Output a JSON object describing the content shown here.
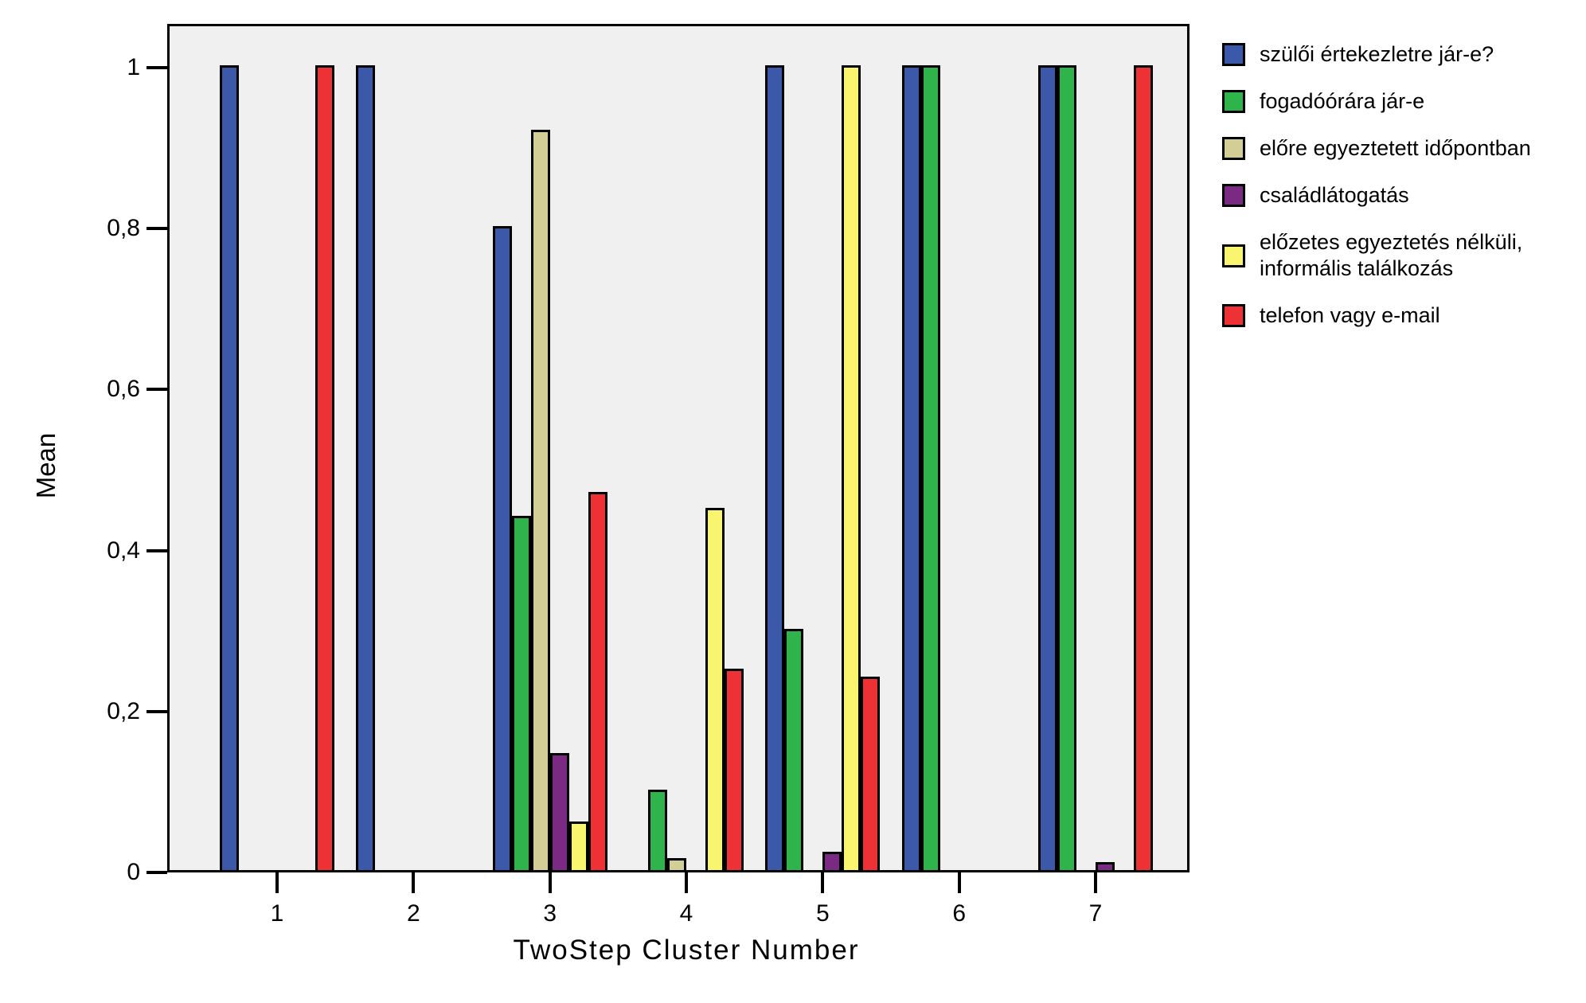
{
  "chart_data": {
    "type": "bar",
    "title": "",
    "xlabel": "TwoStep Cluster Number",
    "ylabel": "Mean",
    "categories": [
      "1",
      "2",
      "3",
      "4",
      "5",
      "6",
      "7"
    ],
    "y_tick_labels": [
      "0",
      "0,2",
      "0,4",
      "0,6",
      "0,8",
      "1"
    ],
    "y_tick_values": [
      0,
      0.2,
      0.4,
      0.6,
      0.8,
      1
    ],
    "ylim": [
      0,
      1.05
    ],
    "grid": false,
    "legend_position": "right",
    "plot_background": "#F0F0F0",
    "bar_border_color": "#000000",
    "series": [
      {
        "name": "szülői értekezletre jár-e?",
        "color": "#3C58A8",
        "values": [
          1,
          1,
          0.8,
          0,
          1,
          1,
          1
        ]
      },
      {
        "name": "fogadóórára jár-e",
        "color": "#2EB44B",
        "values": [
          0,
          0,
          0.44,
          0.1,
          0.3,
          1,
          1
        ]
      },
      {
        "name": "előre egyeztetett időpontban",
        "color": "#D3CD96",
        "values": [
          0,
          0,
          0.92,
          0.015,
          0,
          0,
          0
        ]
      },
      {
        "name": "családlátogatás",
        "color": "#7A2A82",
        "values": [
          0,
          0,
          0.145,
          0,
          0.023,
          0,
          0.01
        ]
      },
      {
        "name": "előzetes egyeztetés nélküli, informális találkozás",
        "color": "#FAF56E",
        "values": [
          0,
          0,
          0.06,
          0.45,
          1,
          0,
          0
        ]
      },
      {
        "name": "telefon vagy e-mail",
        "color": "#EE3135",
        "values": [
          1,
          0,
          0.47,
          0.25,
          0.24,
          0,
          1
        ]
      }
    ]
  }
}
